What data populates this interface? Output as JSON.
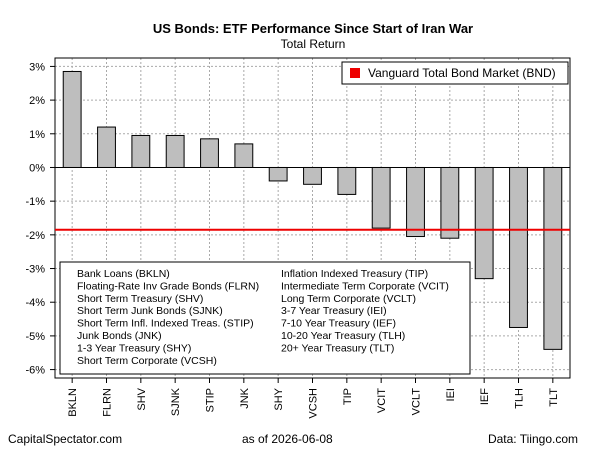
{
  "chart_data": {
    "type": "bar",
    "title": "US Bonds: ETF Performance Since Start of Iran War",
    "subtitle": "Total Return",
    "categories": [
      "BKLN",
      "FLRN",
      "SHV",
      "SJNK",
      "STIP",
      "JNK",
      "SHY",
      "VCSH",
      "TIP",
      "VCIT",
      "VCLT",
      "IEI",
      "IEF",
      "TLH",
      "TLT"
    ],
    "values": [
      2.85,
      1.2,
      0.95,
      0.95,
      0.85,
      0.7,
      -0.4,
      -0.5,
      -0.8,
      -1.8,
      -2.05,
      -2.1,
      -3.3,
      -4.75,
      -5.4
    ],
    "ylim": [
      -6.25,
      3.25
    ],
    "yticks": [
      3,
      2,
      1,
      0,
      -1,
      -2,
      -3,
      -4,
      -5,
      -6
    ],
    "ytick_labels": [
      "3%",
      "2%",
      "1%",
      "0%",
      "-1%",
      "-2%",
      "-3%",
      "-4%",
      "-5%",
      "-6%"
    ],
    "reference_line": {
      "name": "Vanguard Total Bond Market (BND)",
      "value": -1.85,
      "color": "#ee0000"
    },
    "bar_color": "#bebebe",
    "grid": true,
    "legend_position": "top-right",
    "names_legend": {
      "position": "bottom-left",
      "col1": [
        "Bank Loans (BKLN)",
        "Floating-Rate Inv Grade Bonds (FLRN)",
        "Short Term Treasury (SHV)",
        "Short Term Junk Bonds (SJNK)",
        "Short Term Infl. Indexed Treas. (STIP)",
        "Junk Bonds (JNK)",
        "1-3 Year Treasury (SHY)",
        "Short Term Corporate (VCSH)"
      ],
      "col2": [
        "Inflation Indexed Treasury (TIP)",
        "Intermediate Term Corporate (VCIT)",
        "Long Term Corporate (VCLT)",
        "3-7 Year Treasury (IEI)",
        "7-10 Year Treasury (IEF)",
        "10-20 Year Treasury (TLH)",
        "20+ Year Treasury (TLT)"
      ]
    }
  },
  "footer": {
    "left": "CapitalSpectator.com",
    "center": "as of   2026-06-08",
    "right": "Data: Tiingo.com"
  }
}
